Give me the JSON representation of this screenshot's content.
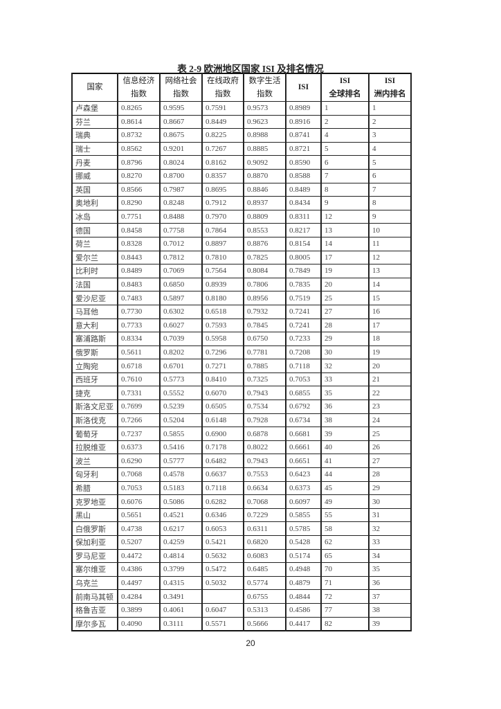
{
  "title": "表 2-9 欧洲地区国家 ISI 及排名情况",
  "headers": [
    {
      "line1": "国家",
      "line2": ""
    },
    {
      "line1": "信息经济",
      "line2": "指数"
    },
    {
      "line1": "网络社会",
      "line2": "指数"
    },
    {
      "line1": "在线政府",
      "line2": "指数"
    },
    {
      "line1": "数字生活",
      "line2": "指数"
    },
    {
      "line1": "ISI",
      "line2": ""
    },
    {
      "line1": "ISI",
      "line2": "全球排名"
    },
    {
      "line1": "ISI",
      "line2": "洲内排名"
    }
  ],
  "rows": [
    [
      "卢森堡",
      "0.8265",
      "0.9595",
      "0.7591",
      "0.9573",
      "0.8989",
      "1",
      "1"
    ],
    [
      "芬兰",
      "0.8614",
      "0.8667",
      "0.8449",
      "0.9623",
      "0.8916",
      "2",
      "2"
    ],
    [
      "瑞典",
      "0.8732",
      "0.8675",
      "0.8225",
      "0.8988",
      "0.8741",
      "4",
      "3"
    ],
    [
      "瑞士",
      "0.8562",
      "0.9201",
      "0.7267",
      "0.8885",
      "0.8721",
      "5",
      "4"
    ],
    [
      "丹麦",
      "0.8796",
      "0.8024",
      "0.8162",
      "0.9092",
      "0.8590",
      "6",
      "5"
    ],
    [
      "挪威",
      "0.8270",
      "0.8700",
      "0.8357",
      "0.8870",
      "0.8588",
      "7",
      "6"
    ],
    [
      "英国",
      "0.8566",
      "0.7987",
      "0.8695",
      "0.8846",
      "0.8489",
      "8",
      "7"
    ],
    [
      "奥地利",
      "0.8290",
      "0.8248",
      "0.7912",
      "0.8937",
      "0.8434",
      "9",
      "8"
    ],
    [
      "冰岛",
      "0.7751",
      "0.8488",
      "0.7970",
      "0.8809",
      "0.8311",
      "12",
      "9"
    ],
    [
      "德国",
      "0.8458",
      "0.7758",
      "0.7864",
      "0.8553",
      "0.8217",
      "13",
      "10"
    ],
    [
      "荷兰",
      "0.8328",
      "0.7012",
      "0.8897",
      "0.8876",
      "0.8154",
      "14",
      "11"
    ],
    [
      "爱尔兰",
      "0.8443",
      "0.7812",
      "0.7810",
      "0.7825",
      "0.8005",
      "17",
      "12"
    ],
    [
      "比利时",
      "0.8489",
      "0.7069",
      "0.7564",
      "0.8084",
      "0.7849",
      "19",
      "13"
    ],
    [
      "法国",
      "0.8483",
      "0.6850",
      "0.8939",
      "0.7806",
      "0.7835",
      "20",
      "14"
    ],
    [
      "爱沙尼亚",
      "0.7483",
      "0.5897",
      "0.8180",
      "0.8956",
      "0.7519",
      "25",
      "15"
    ],
    [
      "马耳他",
      "0.7730",
      "0.6302",
      "0.6518",
      "0.7932",
      "0.7241",
      "27",
      "16"
    ],
    [
      "意大利",
      "0.7733",
      "0.6027",
      "0.7593",
      "0.7845",
      "0.7241",
      "28",
      "17"
    ],
    [
      "塞浦路斯",
      "0.8334",
      "0.7039",
      "0.5958",
      "0.6750",
      "0.7233",
      "29",
      "18"
    ],
    [
      "俄罗斯",
      "0.5611",
      "0.8202",
      "0.7296",
      "0.7781",
      "0.7208",
      "30",
      "19"
    ],
    [
      "立陶宛",
      "0.6718",
      "0.6701",
      "0.7271",
      "0.7885",
      "0.7118",
      "32",
      "20"
    ],
    [
      "西班牙",
      "0.7610",
      "0.5773",
      "0.8410",
      "0.7325",
      "0.7053",
      "33",
      "21"
    ],
    [
      "捷克",
      "0.7331",
      "0.5552",
      "0.6070",
      "0.7943",
      "0.6855",
      "35",
      "22"
    ],
    [
      "斯洛文尼亚",
      "0.7699",
      "0.5239",
      "0.6505",
      "0.7534",
      "0.6792",
      "36",
      "23"
    ],
    [
      "斯洛伐克",
      "0.7266",
      "0.5204",
      "0.6148",
      "0.7928",
      "0.6734",
      "38",
      "24"
    ],
    [
      "葡萄牙",
      "0.7237",
      "0.5855",
      "0.6900",
      "0.6878",
      "0.6681",
      "39",
      "25"
    ],
    [
      "拉脱维亚",
      "0.6373",
      "0.5416",
      "0.7178",
      "0.8022",
      "0.6661",
      "40",
      "26"
    ],
    [
      "波兰",
      "0.6290",
      "0.5777",
      "0.6482",
      "0.7943",
      "0.6651",
      "41",
      "27"
    ],
    [
      "匈牙利",
      "0.7068",
      "0.4578",
      "0.6637",
      "0.7553",
      "0.6423",
      "44",
      "28"
    ],
    [
      "希腊",
      "0.7053",
      "0.5183",
      "0.7118",
      "0.6634",
      "0.6373",
      "45",
      "29"
    ],
    [
      "克罗地亚",
      "0.6076",
      "0.5086",
      "0.6282",
      "0.7068",
      "0.6097",
      "49",
      "30"
    ],
    [
      "黑山",
      "0.5651",
      "0.4521",
      "0.6346",
      "0.7229",
      "0.5855",
      "55",
      "31"
    ],
    [
      "白俄罗斯",
      "0.4738",
      "0.6217",
      "0.6053",
      "0.6311",
      "0.5785",
      "58",
      "32"
    ],
    [
      "保加利亚",
      "0.5207",
      "0.4259",
      "0.5421",
      "0.6820",
      "0.5428",
      "62",
      "33"
    ],
    [
      "罗马尼亚",
      "0.4472",
      "0.4814",
      "0.5632",
      "0.6083",
      "0.5174",
      "65",
      "34"
    ],
    [
      "塞尔维亚",
      "0.4386",
      "0.3799",
      "0.5472",
      "0.6485",
      "0.4948",
      "70",
      "35"
    ],
    [
      "乌克兰",
      "0.4497",
      "0.4315",
      "0.5032",
      "0.5774",
      "0.4879",
      "71",
      "36"
    ],
    [
      "前南马其顿",
      "0.4284",
      "0.3491",
      "",
      "0.6755",
      "0.4844",
      "72",
      "37"
    ],
    [
      "格鲁吉亚",
      "0.3899",
      "0.4061",
      "0.6047",
      "0.5313",
      "0.4586",
      "77",
      "38"
    ],
    [
      "摩尔多瓦",
      "0.4090",
      "0.3111",
      "0.5571",
      "0.5666",
      "0.4417",
      "82",
      "39"
    ]
  ],
  "page_number": "20"
}
